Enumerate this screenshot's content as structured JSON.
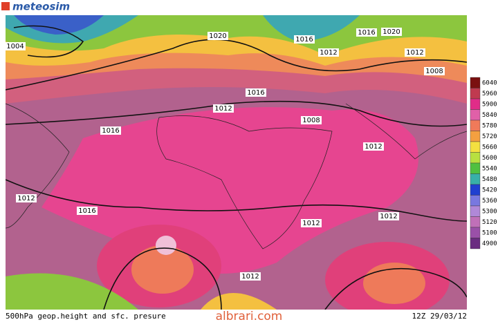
{
  "header": {
    "logo": "meteosim"
  },
  "map": {
    "isobar_labels": [
      1004,
      1020,
      1016,
      1012,
      1016,
      1020,
      1012,
      1008,
      1016,
      1012,
      1008,
      1016,
      1012,
      1012,
      1016,
      1012,
      1012,
      1012
    ]
  },
  "legend": {
    "labels": [
      "6040",
      "5960",
      "5900",
      "5840",
      "5780",
      "5720",
      "5660",
      "5600",
      "5540",
      "5480",
      "5420",
      "5360",
      "5300",
      "5120",
      "5100",
      "4900"
    ]
  },
  "footer": {
    "caption": "500hPa geop.height and sfc. presure",
    "watermark": "albrari.com",
    "timestamp": "12Z 29/03/12"
  }
}
